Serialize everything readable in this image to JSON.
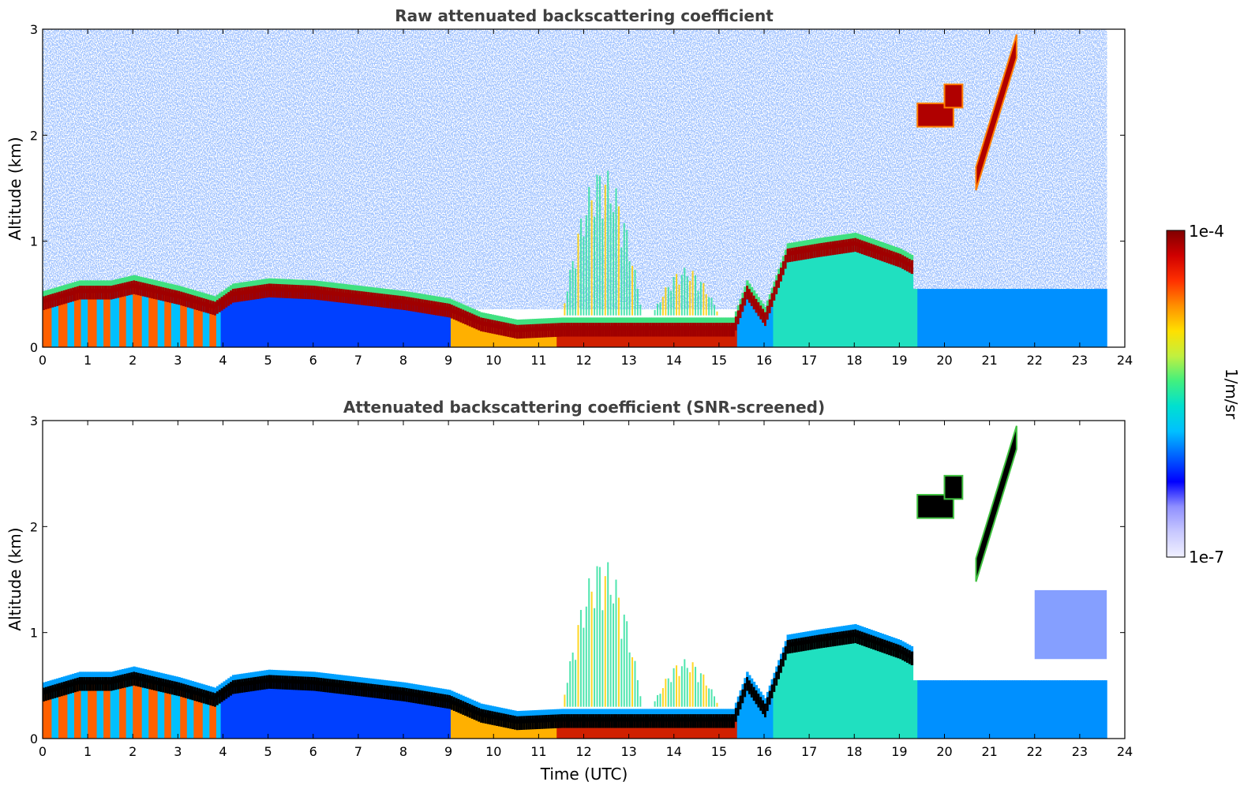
{
  "chart_data": [
    {
      "type": "heatmap",
      "title": "Raw attenuated backscattering coefficient",
      "xlabel": "",
      "ylabel": "Altitude (km)",
      "xlim": [
        0,
        24
      ],
      "ylim": [
        0,
        3
      ],
      "xticks": [
        "0",
        "1",
        "2",
        "3",
        "4",
        "5",
        "6",
        "7",
        "8",
        "9",
        "10",
        "11",
        "12",
        "13",
        "14",
        "15",
        "16",
        "17",
        "18",
        "19",
        "20",
        "21",
        "22",
        "23",
        "24"
      ],
      "yticks": [
        "0",
        "1",
        "2",
        "3"
      ],
      "data_end_hour": 23.6,
      "features": {
        "boundary_layer_top_km": [
          [
            0,
            0.45
          ],
          [
            0.8,
            0.55
          ],
          [
            1.5,
            0.55
          ],
          [
            2,
            0.6
          ],
          [
            3,
            0.5
          ],
          [
            3.8,
            0.4
          ],
          [
            4.2,
            0.52
          ],
          [
            5,
            0.57
          ],
          [
            6,
            0.55
          ],
          [
            7,
            0.5
          ],
          [
            8,
            0.45
          ],
          [
            9,
            0.38
          ],
          [
            9.7,
            0.25
          ],
          [
            10.5,
            0.18
          ],
          [
            11.5,
            0.2
          ],
          [
            12.5,
            0.2
          ],
          [
            13.5,
            0.2
          ],
          [
            14.5,
            0.2
          ],
          [
            15.3,
            0.2
          ],
          [
            15.6,
            0.55
          ],
          [
            16,
            0.3
          ],
          [
            16.5,
            0.9
          ],
          [
            17.2,
            0.95
          ],
          [
            18,
            1.0
          ],
          [
            19,
            0.85
          ],
          [
            19.3,
            0.78
          ]
        ],
        "elevated_cloud_segments_km": [
          {
            "t_start": 19.4,
            "t_end": 20.2,
            "alt": 2.2
          },
          {
            "t_start": 20.0,
            "t_end": 20.4,
            "alt": 2.38
          },
          {
            "t_start": 20.7,
            "t_end": 21.6,
            "alt_start": 1.6,
            "alt_end": 2.85
          }
        ],
        "convective_plumes_km": [
          {
            "t_start": 11.5,
            "t_end": 13.3,
            "max_alt": 1.7
          },
          {
            "t_start": 13.5,
            "t_end": 15.0,
            "max_alt": 0.75
          }
        ],
        "aerosol_layer_top_after_19_km": 0.55
      }
    },
    {
      "type": "heatmap",
      "title": "Attenuated backscattering coefficient (SNR-screened)",
      "xlabel": "Time (UTC)",
      "ylabel": "Altitude (km)",
      "xlim": [
        0,
        24
      ],
      "ylim": [
        0,
        3
      ],
      "xticks": [
        "0",
        "1",
        "2",
        "3",
        "4",
        "5",
        "6",
        "7",
        "8",
        "9",
        "10",
        "11",
        "12",
        "13",
        "14",
        "15",
        "16",
        "17",
        "18",
        "19",
        "20",
        "21",
        "22",
        "23",
        "24"
      ],
      "yticks": [
        "0",
        "1",
        "2",
        "3"
      ],
      "data_end_hour": 23.6,
      "features": {
        "saturated_color": "#000000",
        "noise_screened": true,
        "upper_aerosol_patch": {
          "t_start": 22.0,
          "t_end": 23.6,
          "alt_min": 0.75,
          "alt_max": 1.4
        }
      }
    }
  ],
  "colorbar": {
    "label": "1/m/sr",
    "max_label": "1e-4",
    "min_label": "1e-7",
    "colormap": [
      "#f0f0ff",
      "#c8c8ff",
      "#9090ff",
      "#0000ff",
      "#0060ff",
      "#00c0ff",
      "#00e0d0",
      "#40f080",
      "#c0f040",
      "#ffe000",
      "#ff9000",
      "#ff3000",
      "#d00000",
      "#800000"
    ]
  }
}
